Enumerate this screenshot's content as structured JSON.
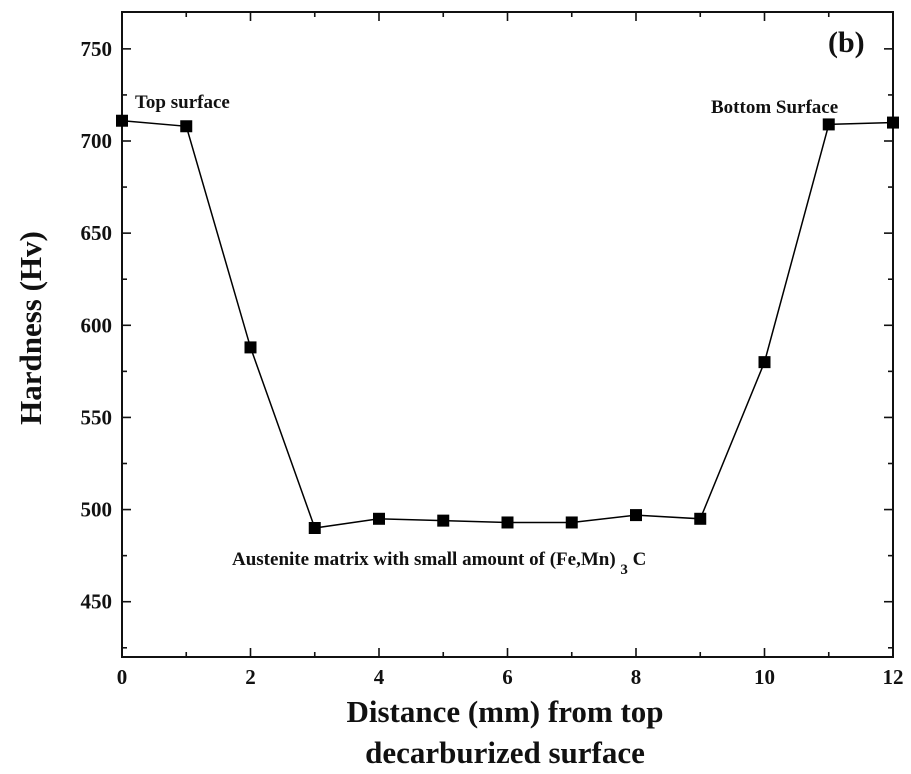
{
  "chart_data": {
    "type": "line",
    "panel_label": "(b)",
    "xlabel_line1": "Distance (mm) from top",
    "xlabel_line2": "decarburized surface",
    "ylabel": "Hardness (Hv)",
    "xlim": [
      0,
      12
    ],
    "ylim": [
      420,
      770
    ],
    "x_ticks": [
      0,
      2,
      4,
      6,
      8,
      10,
      12
    ],
    "y_ticks": [
      450,
      500,
      550,
      600,
      650,
      700,
      750
    ],
    "grid": false,
    "series": [
      {
        "x": [
          0,
          1,
          2,
          3,
          4,
          5,
          6,
          7,
          8,
          9,
          10,
          11,
          12
        ],
        "y": [
          711,
          708,
          588,
          490,
          495,
          494,
          493,
          493,
          497,
          495,
          580,
          709,
          710
        ],
        "color": "#000000",
        "marker": "square"
      }
    ],
    "annotations": {
      "top": "Top surface",
      "bottom": "Bottom Surface",
      "matrix_main": "Austenite matrix with small amount of (Fe,Mn)",
      "matrix_sub": "3",
      "matrix_end": "C"
    }
  }
}
